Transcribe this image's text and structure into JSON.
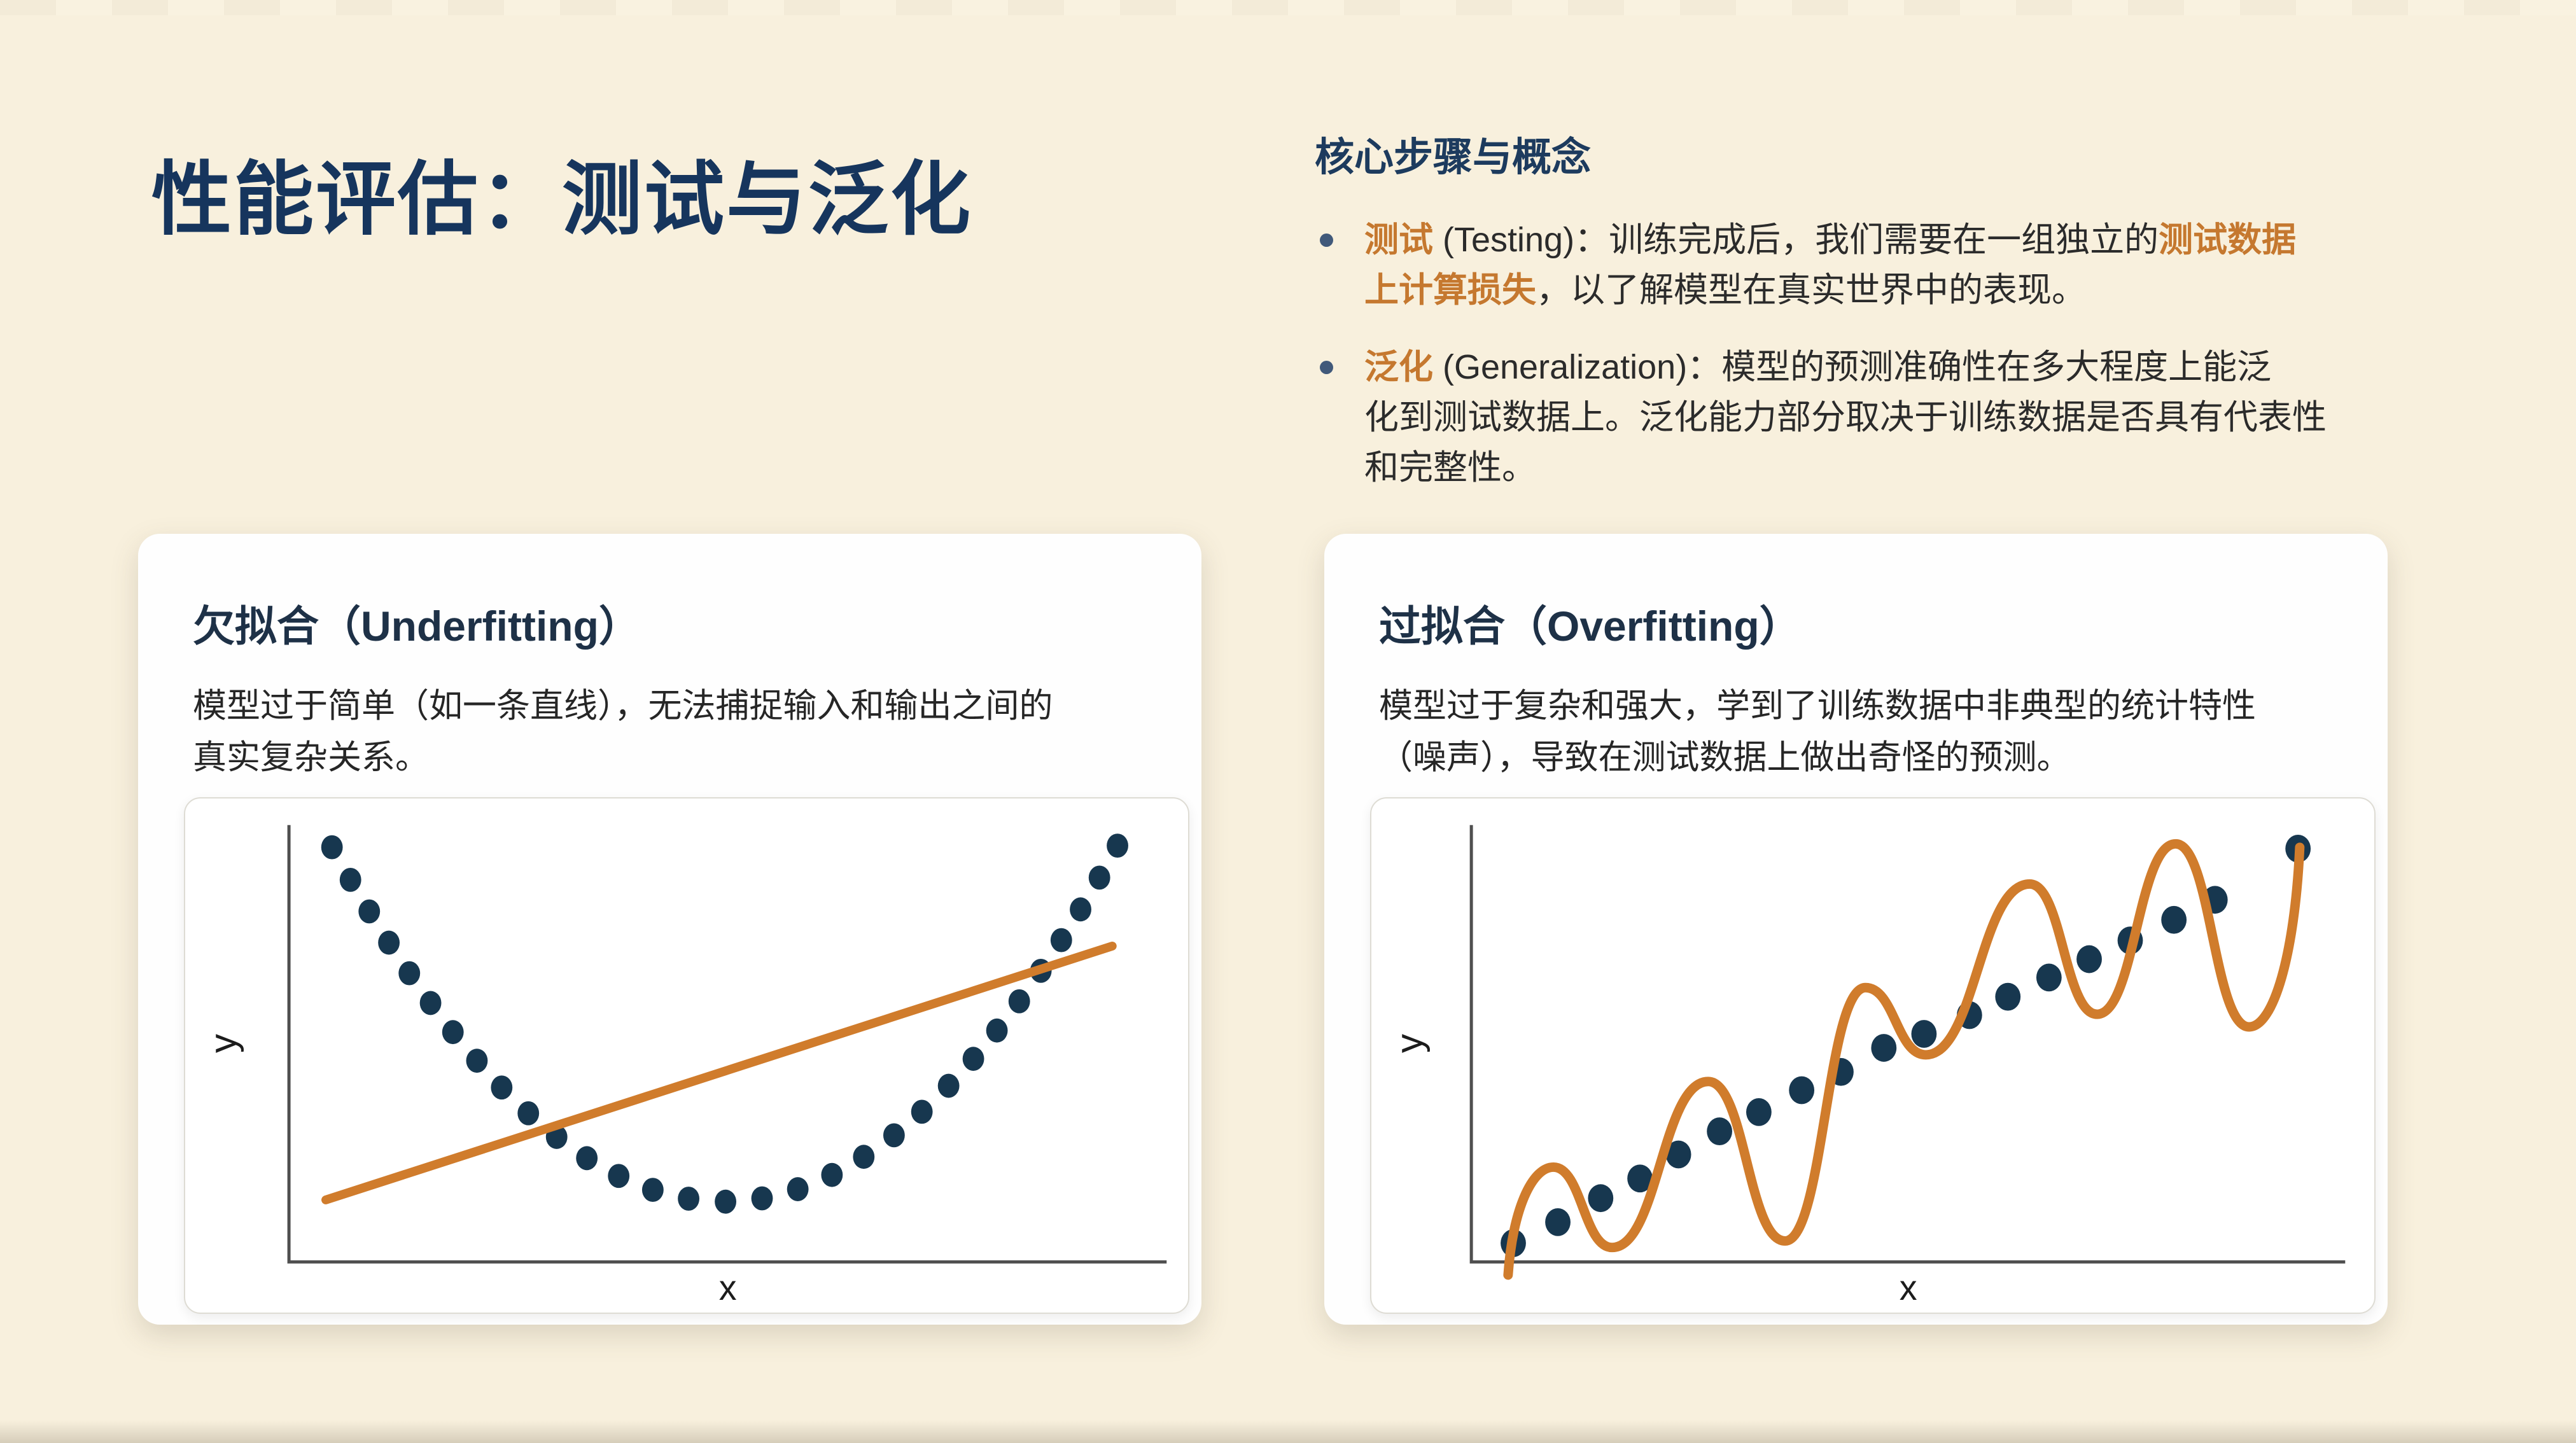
{
  "title": "性能评估：测试与泛化",
  "colors": {
    "background": "#f8f0dd",
    "title_navy": "#16355d",
    "heading_navy": "#1d3b5e",
    "card_heading": "#1e3147",
    "body_text": "#2b2b2b",
    "accent_orange": "#c5782f",
    "fit_orange": "#d07c2c",
    "dot_navy": "#17374f",
    "axis_gray": "#4f4f4f",
    "card_white": "#fefefe"
  },
  "right_panel": {
    "heading": "核心步骤与概念",
    "bullets": [
      {
        "lines": [
          [
            {
              "t": "测试",
              "em": 1
            },
            {
              "t": " (Testing)：",
              "em": 0
            },
            {
              "t": "训练完成后，我们需要在一组独立的",
              "em": 0
            },
            {
              "t": "测试数据",
              "em": 1
            }
          ],
          [
            {
              "t": "上计算损失",
              "em": 1
            },
            {
              "t": "，以了解模型在真实世界中的表现。",
              "em": 0
            }
          ]
        ]
      },
      {
        "lines": [
          [
            {
              "t": "泛化",
              "em": 1
            },
            {
              "t": " (Generalization)：",
              "em": 0
            },
            {
              "t": "模型的预测准确性在多大程度上能泛",
              "em": 0
            }
          ],
          [
            {
              "t": "化到测试数据上。泛化能力部分取决于训练数据是否具有代表性",
              "em": 0
            }
          ],
          [
            {
              "t": "和完整性。",
              "em": 0
            }
          ]
        ]
      }
    ]
  },
  "cards": [
    {
      "heading": "欠拟合（Underfitting）",
      "body_lines": [
        "模型过于简单（如一条直线），无法捕捉输入和输出之间的",
        "真实复杂关系。"
      ],
      "chart_key": "underfitting"
    },
    {
      "heading": "过拟合（Overfitting）",
      "body_lines": [
        "模型过于复杂和强大，学到了训练数据中非典型的统计特性",
        "（噪声），导致在测试数据上做出奇怪的预测。"
      ],
      "chart_key": "overfitting"
    }
  ],
  "chart_data": [
    {
      "key": "underfitting",
      "type": "scatter",
      "title": "欠拟合（Underfitting）",
      "xlabel": "x",
      "ylabel": "y",
      "legend": "none",
      "grid": false,
      "axis_range_note": "unlabeled axes, values in 0-100 normalized plot units",
      "scatter_shape": "U-shaped parabola of dots",
      "parabola": {
        "vertex": [
          49.6,
          13.8
        ],
        "coeff": 0.0406,
        "u_min": 4.9,
        "u_max": 94.4,
        "count": 31
      },
      "fit_model": "straight line (too simple)",
      "fit_line": {
        "from": [
          4.2,
          14.2
        ],
        "to": [
          93.8,
          72.3
        ]
      }
    },
    {
      "key": "overfitting",
      "type": "scatter",
      "title": "过拟合（Overfitting）",
      "xlabel": "x",
      "ylabel": "y",
      "legend": "none",
      "grid": false,
      "axis_range_note": "unlabeled axes, values in 0-100 normalized plot units",
      "scatter_points": [
        [
          4.8,
          4.3
        ],
        [
          9.9,
          9.1
        ],
        [
          14.8,
          14.6
        ],
        [
          19.3,
          19.1
        ],
        [
          23.7,
          24.6
        ],
        [
          28.4,
          29.9
        ],
        [
          32.9,
          34.3
        ],
        [
          37.8,
          39.3
        ],
        [
          42.3,
          43.5
        ],
        [
          47.2,
          49.0
        ],
        [
          51.8,
          52.2
        ],
        [
          57.0,
          56.5
        ],
        [
          61.4,
          60.7
        ],
        [
          66.1,
          65.1
        ],
        [
          70.7,
          69.3
        ],
        [
          75.4,
          73.6
        ],
        [
          80.4,
          78.3
        ],
        [
          85.1,
          82.9
        ],
        [
          94.6,
          94.6
        ]
      ],
      "fit_model": "oscillating wiggly curve (too complex)",
      "fit_curve_extrema": [
        [
          4.2,
          -3,
          1
        ],
        [
          9.4,
          21.7,
          0
        ],
        [
          16.1,
          3.3,
          0
        ],
        [
          27.1,
          41.3,
          0
        ],
        [
          35.9,
          4.8,
          0
        ],
        [
          45.1,
          62.8,
          0
        ],
        [
          52.0,
          47.4,
          0
        ],
        [
          63.9,
          86.5,
          0
        ],
        [
          71.6,
          56.7,
          0
        ],
        [
          80.6,
          95.7,
          0
        ],
        [
          89.0,
          53.8,
          0
        ],
        [
          94.8,
          94.9,
          1
        ]
      ]
    }
  ]
}
